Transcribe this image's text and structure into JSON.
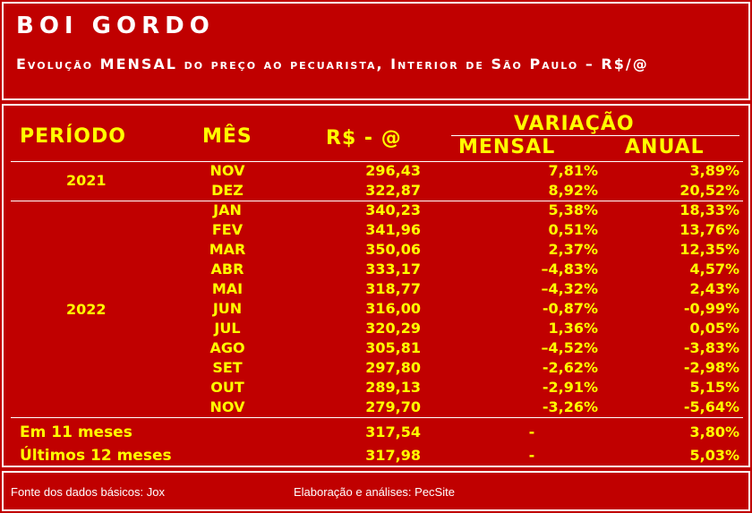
{
  "title": "BOI GORDO",
  "subtitle": "Evolução MENSAL do preço ao pecuarista, Interior de São Paulo – R$/@",
  "headers": {
    "periodo": "PERÍODO",
    "mes": "MÊS",
    "rs": "R$ - @",
    "variacao": "VARIAÇÃO",
    "mensal": "MENSAL",
    "anual": "ANUAL"
  },
  "periods": {
    "y2021": "2021",
    "y2022": "2022"
  },
  "rows": [
    {
      "mes": "NOV",
      "rs": "296,43",
      "mensal": "7,81%",
      "anual": "3,89%"
    },
    {
      "mes": "DEZ",
      "rs": "322,87",
      "mensal": "8,92%",
      "anual": "20,52%"
    },
    {
      "mes": "JAN",
      "rs": "340,23",
      "mensal": "5,38%",
      "anual": "18,33%"
    },
    {
      "mes": "FEV",
      "rs": "341,96",
      "mensal": "0,51%",
      "anual": "13,76%"
    },
    {
      "mes": "MAR",
      "rs": "350,06",
      "mensal": "2,37%",
      "anual": "12,35%"
    },
    {
      "mes": "ABR",
      "rs": "333,17",
      "mensal": "–4,83%",
      "anual": "4,57%"
    },
    {
      "mes": "MAI",
      "rs": "318,77",
      "mensal": "–4,32%",
      "anual": "2,43%"
    },
    {
      "mes": "JUN",
      "rs": "316,00",
      "mensal": "-0,87%",
      "anual": "-0,99%"
    },
    {
      "mes": "JUL",
      "rs": "320,29",
      "mensal": "1,36%",
      "anual": "0,05%"
    },
    {
      "mes": "AGO",
      "rs": "305,81",
      "mensal": "–4,52%",
      "anual": "-3,83%"
    },
    {
      "mes": "SET",
      "rs": "297,80",
      "mensal": "-2,62%",
      "anual": "-2,98%"
    },
    {
      "mes": "OUT",
      "rs": "289,13",
      "mensal": "-2,91%",
      "anual": "5,15%"
    },
    {
      "mes": "NOV",
      "rs": "279,70",
      "mensal": "-3,26%",
      "anual": "-5,64%"
    }
  ],
  "summary": [
    {
      "label": "Em 11 meses",
      "rs": "317,54",
      "mensal": "-",
      "anual": "3,80%"
    },
    {
      "label": "Últimos 12 meses",
      "rs": "317,98",
      "mensal": "-",
      "anual": "5,03%"
    }
  ],
  "footer": {
    "source": "Fonte dos dados básicos: Jox",
    "credit": "Elaboração e análises: PecSite"
  }
}
